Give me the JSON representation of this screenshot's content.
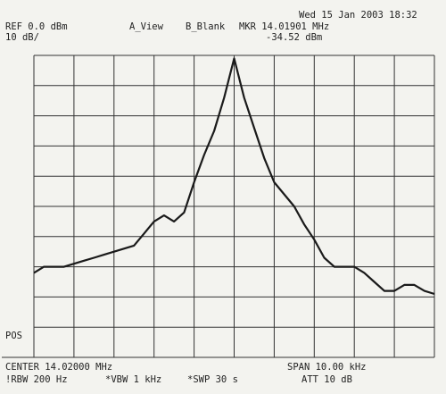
{
  "chart_data": {
    "type": "line",
    "date": "Wed 15 Jan 2003 18:32",
    "ref_level": "REF 0.0 dBm",
    "scale": "10 dB/",
    "view_a": "A_View",
    "view_b": "B_Blank",
    "marker_freq": "MKR 14.01901 MHz",
    "marker_level": "-34.52 dBm",
    "pos": "POS",
    "center": "CENTER 14.02000 MHz",
    "span": "SPAN 10.00 kHz",
    "rbw": "!RBW 200 Hz",
    "vbw": "*VBW 1 kHz",
    "swp": "*SWP 30 s",
    "att": "ATT 10 dB",
    "xlim": [
      14.015,
      14.025
    ],
    "ylim": [
      -100,
      0
    ],
    "grid": true,
    "color": "#1a1a1a",
    "x": [
      14.015,
      14.01525,
      14.0155,
      14.01575,
      14.016,
      14.01625,
      14.0165,
      14.01675,
      14.017,
      14.01725,
      14.0175,
      14.01775,
      14.018,
      14.01825,
      14.0185,
      14.01875,
      14.019,
      14.01925,
      14.0195,
      14.01975,
      14.02,
      14.02025,
      14.0205,
      14.02075,
      14.021,
      14.02125,
      14.0215,
      14.02175,
      14.022,
      14.02225,
      14.0225,
      14.02275,
      14.023,
      14.02325,
      14.0235,
      14.02375,
      14.024,
      14.02425,
      14.0245,
      14.02475,
      14.025
    ],
    "values": [
      -72,
      -70,
      -70,
      -70,
      -69,
      -68,
      -67,
      -66,
      -65,
      -64,
      -63,
      -59,
      -55,
      -53,
      -55,
      -52,
      -42,
      -33,
      -25,
      -14,
      -1,
      -14,
      -24,
      -34,
      -42,
      -46,
      -50,
      -56,
      -61,
      -67,
      -70,
      -70,
      -70,
      -72,
      -75,
      -78,
      -78,
      -76,
      -76,
      -78,
      -79
    ]
  }
}
